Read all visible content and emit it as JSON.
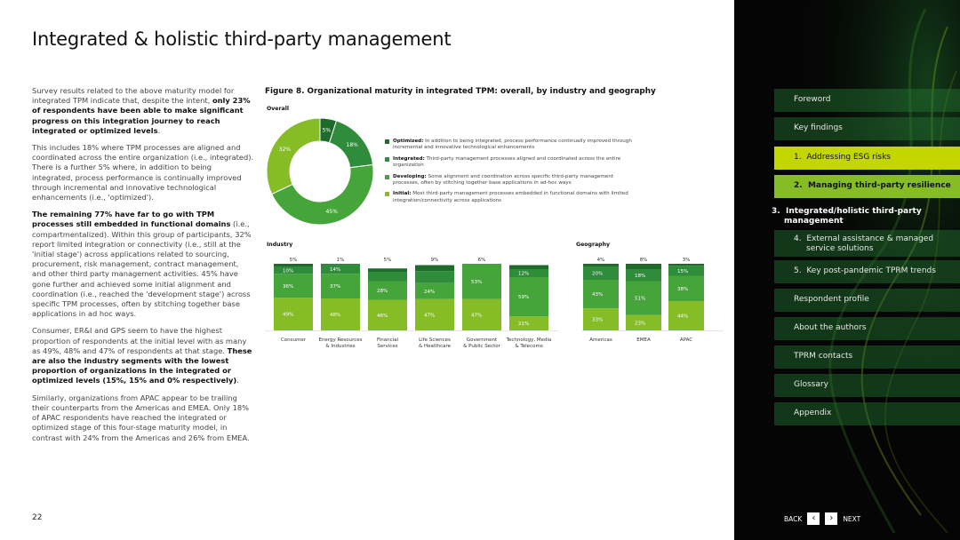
{
  "title": "Integrated & holistic third-party management",
  "page_number": "22",
  "body": {
    "p1_pre": "Survey results related to the above maturity model for integrated TPM indicate that, despite the intent, ",
    "p1_bold": "only 23% of respondents have been able to make significant progress on this integration journey to reach integrated or optimized levels",
    "p1_end": ".",
    "p2": "This includes 18% where TPM processes are aligned and coordinated across the entire organization (i.e., integrated). There is a further 5% where, in addition to being integrated, process performance is continually improved through incremental and innovative technological enhancements (i.e., 'optimized').",
    "p3_bold": "The remaining 77% have far to go with TPM processes still embedded in functional domains",
    "p3_rest": " (i.e., compartmentalized). Within this group of participants, 32% report limited integration or connectivity (i.e., still at the 'initial stage') across applications related to sourcing, procurement, risk management, contract management, and other third party management activities. 45% have gone further and achieved some initial alignment and coordination (i.e., reached the 'development stage') across specific TPM processes, often by stitching together base applications in ad hoc ways.",
    "p4_pre": "Consumer, ER&I and GPS seem to have the highest proportion of respondents at the initial level with as many as 49%, 48% and 47% of respondents at that stage. ",
    "p4_bold": "These are also the industry segments with the lowest proportion of organizations in the integrated or optimized levels (15%, 15% and 0% respectively)",
    "p4_end": ".",
    "p5": "Similarly, organizations from APAC appear to be trailing their counterparts from the Americas and EMEA. Only 18% of APAC respondents have reached the integrated or optimized stage of this four-stage maturity model, in contrast with 24% from the Americas and 26% from EMEA."
  },
  "figure": {
    "title": "Figure 8. Organizational maturity in integrated TPM: overall, by industry and geography",
    "overall_label": "Overall",
    "industry_label": "Industry",
    "geography_label": "Geography",
    "legend": [
      {
        "bold": "Optimized:",
        "text": " In addition to being integrated, process performance continually improved through incremental and innovative technological enhancements",
        "color": "#1e6b2a"
      },
      {
        "bold": "Integrated:",
        "text": " Third-party management processes aligned and coordinated across the entire organization",
        "color": "#2f8c3a"
      },
      {
        "bold": "Developing:",
        "text": " Some alignment and coordination across specific third-party management processes, often by stitching together base applications in ad-hoc ways",
        "color": "#45a53a"
      },
      {
        "bold": "Initial:",
        "text": " Most third-party management processes embedded in functional domains with limited integration/connectivity across applications",
        "color": "#86bc25"
      }
    ]
  },
  "chart_data": [
    {
      "type": "pie",
      "title": "Overall",
      "categories": [
        "Optimized",
        "Integrated",
        "Developing",
        "Initial"
      ],
      "values": [
        5,
        18,
        45,
        32
      ],
      "labels": [
        "5%",
        "18%",
        "45%",
        "32%"
      ],
      "colors": [
        "#1e6b2a",
        "#2f8c3a",
        "#45a53a",
        "#86bc25"
      ]
    },
    {
      "type": "bar",
      "stacked": true,
      "title": "Industry",
      "categories": [
        "Consumer",
        "Energy Resources & Industries",
        "Financial Services",
        "Life Sciences & Healthcare",
        "Government & Public Sector",
        "Technology, Media & Telecoms"
      ],
      "category_lines": [
        [
          "Consumer"
        ],
        [
          "Energy Resources",
          "& Industries"
        ],
        [
          "Financial",
          "Services"
        ],
        [
          "Life Sciences",
          "& Healthcare"
        ],
        [
          "Government",
          "& Public Sector"
        ],
        [
          "Technology, Media",
          "& Telecoms"
        ]
      ],
      "series": [
        {
          "name": "Initial",
          "values": [
            49,
            48,
            46,
            47,
            47,
            21
          ],
          "color": "#86bc25"
        },
        {
          "name": "Developing",
          "values": [
            36,
            37,
            28,
            24,
            53,
            59
          ],
          "color": "#45a53a"
        },
        {
          "name": "Integrated",
          "values": [
            10,
            14,
            14,
            18,
            0,
            12
          ],
          "color": "#2f8c3a"
        },
        {
          "name": "Optimized",
          "values": [
            5,
            1,
            5,
            9,
            0,
            6
          ],
          "color": "#1e6b2a"
        }
      ],
      "segment_labels": [
        [
          "49%",
          "36%",
          "10%"
        ],
        [
          "48%",
          "37%",
          "14%"
        ],
        [
          "46%",
          "28%",
          ""
        ],
        [
          "47%",
          "24%",
          ""
        ],
        [
          "47%",
          "53%",
          ""
        ],
        [
          "21%",
          "59%",
          "12%"
        ]
      ],
      "top_labels": [
        "5%",
        "1%",
        "5%",
        "9%",
        "6%"
      ]
    },
    {
      "type": "bar",
      "stacked": true,
      "title": "Geography",
      "categories": [
        "Americas",
        "EMEA",
        "APAC"
      ],
      "series": [
        {
          "name": "Initial",
          "values": [
            33,
            23,
            44
          ],
          "color": "#86bc25"
        },
        {
          "name": "Developing",
          "values": [
            43,
            51,
            38
          ],
          "color": "#45a53a"
        },
        {
          "name": "Integrated",
          "values": [
            20,
            18,
            15
          ],
          "color": "#2f8c3a"
        },
        {
          "name": "Optimized",
          "values": [
            4,
            8,
            3
          ],
          "color": "#1e6b2a"
        }
      ],
      "segment_labels": [
        [
          "33%",
          "43%",
          "20%"
        ],
        [
          "23%",
          "51%",
          "18%"
        ],
        [
          "44%",
          "38%",
          "15%"
        ]
      ],
      "top_labels": [
        "4%",
        "8%",
        "3%"
      ]
    }
  ],
  "sidebar": {
    "items": [
      {
        "label": "Foreword"
      },
      {
        "label": "Key findings"
      },
      {
        "num": "1.",
        "label": "Addressing ESG risks"
      },
      {
        "num": "2.",
        "label": "Managing third-party resilience"
      },
      {
        "num": "3.",
        "label": "Integrated/holistic third-party",
        "label2": "management"
      },
      {
        "num": "4.",
        "label": "External assistance & managed",
        "label2": "service solutions"
      },
      {
        "num": "5.",
        "label": "Key post-pandemic TPRM trends"
      },
      {
        "label": "Respondent profile"
      },
      {
        "label": "About the authors"
      },
      {
        "label": "TPRM contacts"
      },
      {
        "label": "Glossary"
      },
      {
        "label": "Appendix"
      }
    ],
    "back_label": "BACK",
    "next_label": "NEXT"
  }
}
